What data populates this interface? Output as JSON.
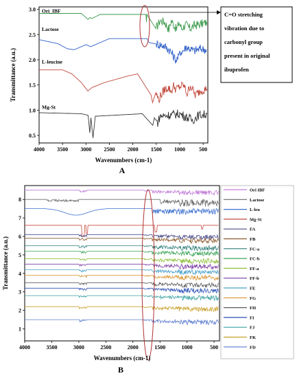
{
  "chart_data": [
    {
      "panel": "A",
      "type": "line",
      "xlabel": "Wavenumbers (cm-1)",
      "ylabel": "Transmittance (a.u.)",
      "xlim": [
        4000,
        400
      ],
      "ylim": [
        0.35,
        3.05
      ],
      "xticks": [
        4000,
        3500,
        3000,
        2500,
        2000,
        1500,
        1000,
        500
      ],
      "yticks": [
        0.5,
        1.0,
        1.5,
        2.0,
        2.5,
        3.0
      ],
      "annotation": "C=O stretching vibration due to carbonyl group present in original ibuprofen",
      "annotation_lines": [
        "C=O stretching",
        "vibration due to",
        "carbonyl group",
        "present in original",
        "ibuprofen"
      ],
      "series": [
        {
          "name": "Ori_IBF",
          "color": "#3a9a4a",
          "baseline": 2.92,
          "points": [
            [
              4000,
              2.92
            ],
            [
              3100,
              2.92
            ],
            [
              2955,
              2.8
            ],
            [
              2920,
              2.84
            ],
            [
              2870,
              2.82
            ],
            [
              2700,
              2.9
            ],
            [
              1720,
              2.9
            ],
            [
              1710,
              2.75
            ],
            [
              1700,
              2.9
            ],
            [
              1510,
              2.62
            ],
            [
              1460,
              2.7
            ],
            [
              1420,
              2.78
            ],
            [
              1320,
              2.75
            ],
            [
              1230,
              2.6
            ],
            [
              1180,
              2.78
            ],
            [
              1070,
              2.6
            ],
            [
              1010,
              2.74
            ],
            [
              960,
              2.62
            ],
            [
              870,
              2.7
            ],
            [
              780,
              2.62
            ],
            [
              690,
              2.68
            ],
            [
              600,
              2.7
            ],
            [
              500,
              2.72
            ],
            [
              420,
              2.75
            ]
          ]
        },
        {
          "name": "Lactose",
          "color": "#2e5fc8",
          "baseline": 2.42,
          "points": [
            [
              4000,
              2.4
            ],
            [
              3600,
              2.32
            ],
            [
              3400,
              2.22
            ],
            [
              3250,
              2.2
            ],
            [
              3000,
              2.3
            ],
            [
              2900,
              2.26
            ],
            [
              2500,
              2.42
            ],
            [
              1700,
              2.42
            ],
            [
              1650,
              2.34
            ],
            [
              1420,
              2.3
            ],
            [
              1340,
              2.28
            ],
            [
              1200,
              2.18
            ],
            [
              1120,
              2.05
            ],
            [
              1080,
              2.0
            ],
            [
              1030,
              2.04
            ],
            [
              990,
              2.15
            ],
            [
              900,
              2.2
            ],
            [
              870,
              2.26
            ],
            [
              780,
              2.22
            ],
            [
              700,
              2.18
            ],
            [
              550,
              2.22
            ],
            [
              420,
              2.2
            ]
          ]
        },
        {
          "name": "L-leucine",
          "color": "#c0463a",
          "baseline": 1.8,
          "points": [
            [
              4000,
              1.8
            ],
            [
              3500,
              1.8
            ],
            [
              3300,
              1.72
            ],
            [
              3100,
              1.55
            ],
            [
              2960,
              1.38
            ],
            [
              2870,
              1.45
            ],
            [
              2600,
              1.55
            ],
            [
              2100,
              1.68
            ],
            [
              1900,
              1.72
            ],
            [
              1610,
              1.3
            ],
            [
              1580,
              1.15
            ],
            [
              1510,
              1.35
            ],
            [
              1450,
              1.2
            ],
            [
              1400,
              1.3
            ],
            [
              1330,
              1.4
            ],
            [
              1250,
              1.45
            ],
            [
              1180,
              1.38
            ],
            [
              1130,
              1.48
            ],
            [
              1080,
              1.42
            ],
            [
              920,
              1.5
            ],
            [
              840,
              1.32
            ],
            [
              770,
              1.5
            ],
            [
              670,
              1.3
            ],
            [
              540,
              1.4
            ],
            [
              420,
              1.42
            ]
          ]
        },
        {
          "name": "Mg-St",
          "color": "#333333",
          "baseline": 0.95,
          "points": [
            [
              4000,
              0.95
            ],
            [
              3100,
              0.93
            ],
            [
              2955,
              0.9
            ],
            [
              2918,
              0.55
            ],
            [
              2895,
              0.85
            ],
            [
              2850,
              0.45
            ],
            [
              2800,
              0.88
            ],
            [
              1800,
              0.93
            ],
            [
              1575,
              0.7
            ],
            [
              1540,
              0.85
            ],
            [
              1470,
              0.75
            ],
            [
              1420,
              0.88
            ],
            [
              1000,
              0.93
            ],
            [
              720,
              0.8
            ],
            [
              600,
              0.9
            ],
            [
              420,
              0.92
            ]
          ]
        }
      ]
    },
    {
      "panel": "B",
      "type": "line",
      "xlabel": "Wavenumbers (cm-1)",
      "ylabel": "Transmittance (a.u.)",
      "xlim": [
        4000,
        400
      ],
      "ylim": [
        0.35,
        8.75
      ],
      "xticks": [
        4000,
        3500,
        3000,
        2500,
        2000,
        1500,
        1000,
        500
      ],
      "yticks": [
        1,
        2,
        3,
        4,
        5,
        6,
        7,
        8
      ],
      "series": [
        {
          "name": "Ori IBF",
          "color": "#c27cd8",
          "baseline": 8.5
        },
        {
          "name": "Lactose",
          "color": "#6b6b6b",
          "baseline": 8.0
        },
        {
          "name": "L-leu",
          "color": "#3b6fd0",
          "baseline": 7.5
        },
        {
          "name": "Mg-St",
          "color": "#c8473d",
          "baseline": 6.6
        },
        {
          "name": "FA",
          "color": "#4c4c8a",
          "baseline": 6.1
        },
        {
          "name": "FB",
          "color": "#8a5a2b",
          "baseline": 5.9
        },
        {
          "name": "FC-a",
          "color": "#2f7f7a",
          "baseline": 5.5
        },
        {
          "name": "FC-b",
          "color": "#3da55a",
          "baseline": 5.2
        },
        {
          "name": "FF-a",
          "color": "#8cbf3a",
          "baseline": 4.8
        },
        {
          "name": "FF-b",
          "color": "#7a3da5",
          "baseline": 4.5
        },
        {
          "name": "FE",
          "color": "#46a0c8",
          "baseline": 4.2
        },
        {
          "name": "FG",
          "color": "#d8902a",
          "baseline": 3.9
        },
        {
          "name": "FH",
          "color": "#5a5a5a",
          "baseline": 3.5
        },
        {
          "name": "FI",
          "color": "#2a4fb5",
          "baseline": 3.2
        },
        {
          "name": "FJ",
          "color": "#3aa0a0",
          "baseline": 2.8
        },
        {
          "name": "FK",
          "color": "#c8a02a",
          "baseline": 2.2
        },
        {
          "name": "FD",
          "color": "#5a7ad0",
          "baseline": 1.5
        }
      ]
    }
  ]
}
